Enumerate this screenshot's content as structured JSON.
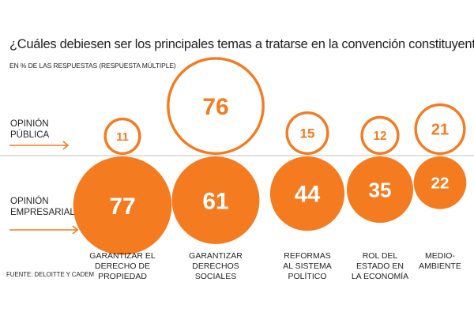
{
  "title": "¿Cuáles debiesen ser los principales temas a tratarse en la convención constituyente?",
  "subtitle": "EN % DE LAS RESPUESTAS (RESPUESTA MÚLTIPLE)",
  "source": "FUENTE: DELOITTE Y CADEM",
  "colors": {
    "accent": "#f47b20",
    "text": "#231f20",
    "divider": "#cfcfcf"
  },
  "chart_data": {
    "type": "bubble",
    "categories": [
      "GARANTIZAR EL\nDERECHO DE\nPROPIEDAD",
      "GARANTIZAR\nDERECHOS\nSOCIALES",
      "REFORMAS\nAL SISTEMA\nPOLÍTICO",
      "ROL DEL\nESTADO EN\nLA ECONOMÍA",
      "MEDIO-\nAMBIENTE"
    ],
    "series": [
      {
        "name": "OPINIÓN PÚBLICA",
        "name_lines": [
          "OPINIÓN",
          "PÚBLICA"
        ],
        "style": "outline",
        "values": [
          11,
          76,
          15,
          12,
          21
        ]
      },
      {
        "name": "OPINIÓN EMPRESARIAL",
        "name_lines": [
          "OPINIÓN",
          "EMPRESARIAL"
        ],
        "style": "filled",
        "values": [
          77,
          61,
          44,
          35,
          22
        ]
      }
    ],
    "value_unit": "%",
    "legend": "left"
  }
}
